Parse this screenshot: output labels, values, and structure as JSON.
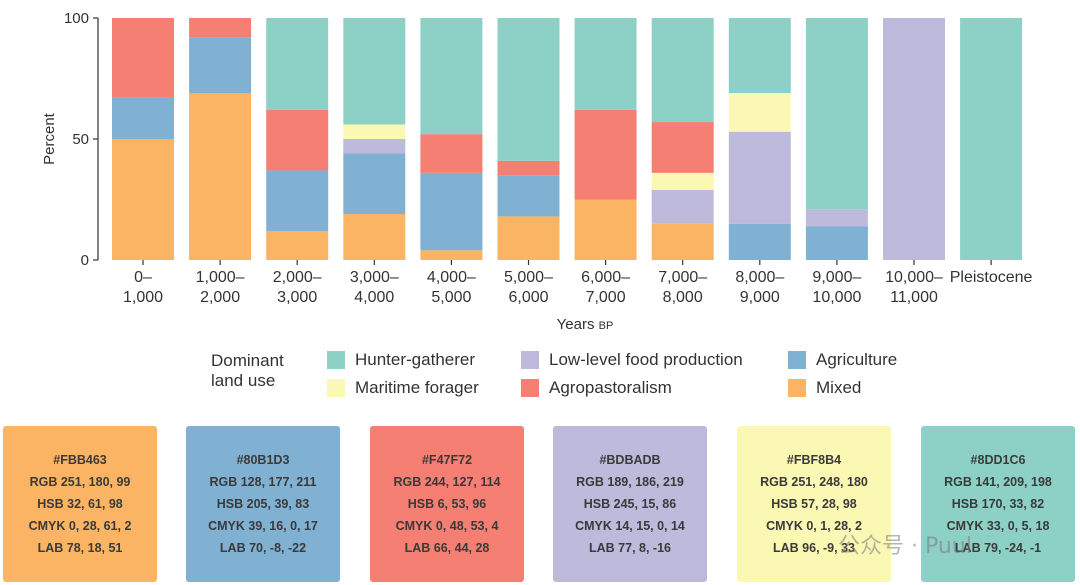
{
  "chart_data": {
    "type": "bar",
    "stacked": true,
    "ylabel": "Percent",
    "xlabel": "Years",
    "xlabel_suffix": "BP",
    "ylim": [
      0,
      100
    ],
    "yticks": [
      "0",
      "50",
      "100"
    ],
    "categories": [
      [
        "0–",
        "1,000"
      ],
      [
        "1,000–",
        "2,000"
      ],
      [
        "2,000–",
        "3,000"
      ],
      [
        "3,000–",
        "4,000"
      ],
      [
        "4,000–",
        "5,000"
      ],
      [
        "5,000–",
        "6,000"
      ],
      [
        "6,000–",
        "7,000"
      ],
      [
        "7,000–",
        "8,000"
      ],
      [
        "8,000–",
        "9,000"
      ],
      [
        "9,000–",
        "10,000"
      ],
      [
        "10,000–",
        "11,000"
      ],
      [
        "Pleistocene"
      ]
    ],
    "series": [
      {
        "key": "mixed",
        "name": "Mixed",
        "color": "#FBB463",
        "values": [
          50,
          69,
          12,
          19,
          4,
          18,
          25,
          15,
          0,
          0,
          0,
          0
        ]
      },
      {
        "key": "agriculture",
        "name": "Agriculture",
        "color": "#80B1D3",
        "values": [
          17,
          23,
          25,
          25,
          32,
          17,
          0,
          0,
          15,
          14,
          0,
          0
        ]
      },
      {
        "key": "low-level",
        "name": "Low-level food production",
        "color": "#BDBADB",
        "values": [
          0,
          0,
          0,
          6,
          0,
          0,
          0,
          14,
          38,
          7,
          100,
          0
        ]
      },
      {
        "key": "maritime",
        "name": "Maritime forager",
        "color": "#FBF8B4",
        "values": [
          0,
          0,
          0,
          6,
          0,
          0,
          0,
          7,
          16,
          0,
          0,
          0
        ]
      },
      {
        "key": "agropastoralism",
        "name": "Agropastoralism",
        "color": "#F47F72",
        "values": [
          33,
          8,
          25,
          0,
          16,
          6,
          37,
          21,
          0,
          0,
          0,
          0
        ]
      },
      {
        "key": "hunter-gatherer",
        "name": "Hunter-gatherer",
        "color": "#8DD1C6",
        "values": [
          0,
          0,
          38,
          44,
          48,
          59,
          38,
          43,
          31,
          79,
          0,
          100
        ]
      }
    ],
    "legend": {
      "title": [
        "Dominant",
        "land use"
      ],
      "items": [
        "Hunter-gatherer",
        "Low-level food production",
        "Agriculture",
        "Maritime forager",
        "Agropastoralism",
        "Mixed"
      ]
    }
  },
  "swatches": [
    {
      "hex": "#FBB463",
      "lines": [
        "#FBB463",
        "RGB 251, 180, 99",
        "HSB 32, 61, 98",
        "CMYK 0, 28, 61, 2",
        "LAB 78, 18, 51"
      ]
    },
    {
      "hex": "#80B1D3",
      "lines": [
        "#80B1D3",
        "RGB 128, 177, 211",
        "HSB 205, 39, 83",
        "CMYK 39, 16, 0, 17",
        "LAB 70, -8, -22"
      ]
    },
    {
      "hex": "#F47F72",
      "lines": [
        "#F47F72",
        "RGB 244, 127, 114",
        "HSB 6, 53, 96",
        "CMYK 0, 48, 53, 4",
        "LAB 66, 44, 28"
      ]
    },
    {
      "hex": "#BDBADB",
      "lines": [
        "#BDBADB",
        "RGB 189, 186, 219",
        "HSB 245, 15, 86",
        "CMYK 14, 15, 0, 14",
        "LAB 77, 8, -16"
      ]
    },
    {
      "hex": "#FBF8B4",
      "lines": [
        "#FBF8B4",
        "RGB 251, 248, 180",
        "HSB 57, 28, 98",
        "CMYK 0, 1, 28, 2",
        "LAB 96, -9, 33"
      ]
    },
    {
      "hex": "#8DD1C6",
      "lines": [
        "#8DD1C6",
        "RGB 141, 209, 198",
        "HSB 170, 33, 82",
        "CMYK 33, 0, 5, 18",
        "LAB 79, -24, -1"
      ]
    }
  ],
  "watermark": "公众号 · Puul"
}
